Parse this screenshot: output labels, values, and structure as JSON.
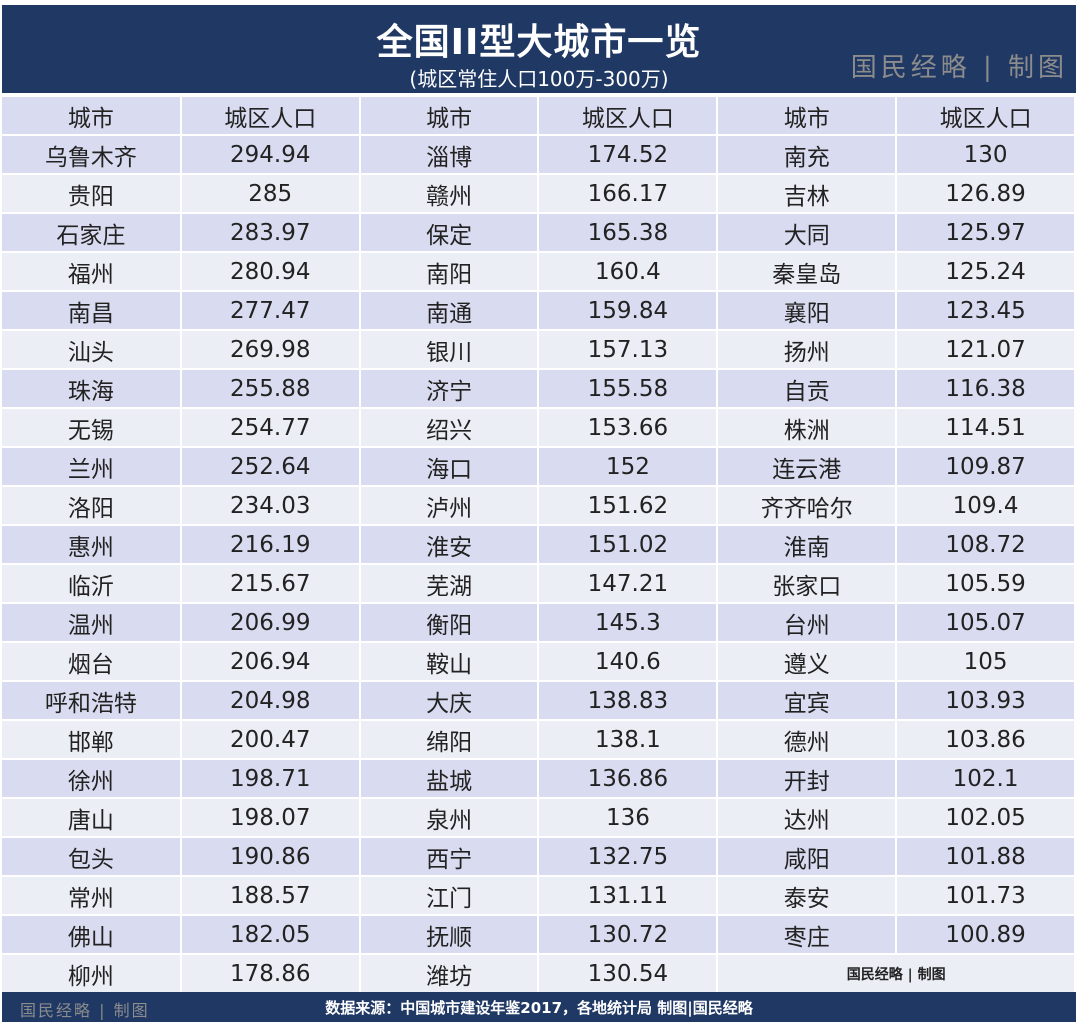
{
  "header": {
    "title": "全国II型大城市一览",
    "subtitle": "(城区常住人口100万-300万)",
    "watermark": "国民经略 | 制图"
  },
  "table": {
    "columns": [
      "城市",
      "城区人口",
      "城市",
      "城区人口",
      "城市",
      "城区人口"
    ],
    "rows": [
      [
        "乌鲁木齐",
        "294.94",
        "淄博",
        "174.52",
        "南充",
        "130"
      ],
      [
        "贵阳",
        "285",
        "赣州",
        "166.17",
        "吉林",
        "126.89"
      ],
      [
        "石家庄",
        "283.97",
        "保定",
        "165.38",
        "大同",
        "125.97"
      ],
      [
        "福州",
        "280.94",
        "南阳",
        "160.4",
        "秦皇岛",
        "125.24"
      ],
      [
        "南昌",
        "277.47",
        "南通",
        "159.84",
        "襄阳",
        "123.45"
      ],
      [
        "汕头",
        "269.98",
        "银川",
        "157.13",
        "扬州",
        "121.07"
      ],
      [
        "珠海",
        "255.88",
        "济宁",
        "155.58",
        "自贡",
        "116.38"
      ],
      [
        "无锡",
        "254.77",
        "绍兴",
        "153.66",
        "株洲",
        "114.51"
      ],
      [
        "兰州",
        "252.64",
        "海口",
        "152",
        "连云港",
        "109.87"
      ],
      [
        "洛阳",
        "234.03",
        "泸州",
        "151.62",
        "齐齐哈尔",
        "109.4"
      ],
      [
        "惠州",
        "216.19",
        "淮安",
        "151.02",
        "淮南",
        "108.72"
      ],
      [
        "临沂",
        "215.67",
        "芜湖",
        "147.21",
        "张家口",
        "105.59"
      ],
      [
        "温州",
        "206.99",
        "衡阳",
        "145.3",
        "台州",
        "105.07"
      ],
      [
        "烟台",
        "206.94",
        "鞍山",
        "140.6",
        "遵义",
        "105"
      ],
      [
        "呼和浩特",
        "204.98",
        "大庆",
        "138.83",
        "宜宾",
        "103.93"
      ],
      [
        "邯郸",
        "200.47",
        "绵阳",
        "138.1",
        "德州",
        "103.86"
      ],
      [
        "徐州",
        "198.71",
        "盐城",
        "136.86",
        "开封",
        "102.1"
      ],
      [
        "唐山",
        "198.07",
        "泉州",
        "136",
        "达州",
        "102.05"
      ],
      [
        "包头",
        "190.86",
        "西宁",
        "132.75",
        "咸阳",
        "101.88"
      ],
      [
        "常州",
        "188.57",
        "江门",
        "131.11",
        "泰安",
        "101.73"
      ],
      [
        "佛山",
        "182.05",
        "抚顺",
        "130.72",
        "枣庄",
        "100.89"
      ],
      [
        "柳州",
        "178.86",
        "潍坊",
        "130.54",
        "国民经略 | 制图",
        ""
      ]
    ]
  },
  "footer": {
    "source": "数据来源：中国城市建设年鉴2017，各地统计局 制图|国民经略",
    "watermark": "国民经略 | 制图"
  },
  "colors": {
    "navy": "#1f3864",
    "row_dark": "#d9dcf0",
    "row_light": "#eceef6"
  }
}
